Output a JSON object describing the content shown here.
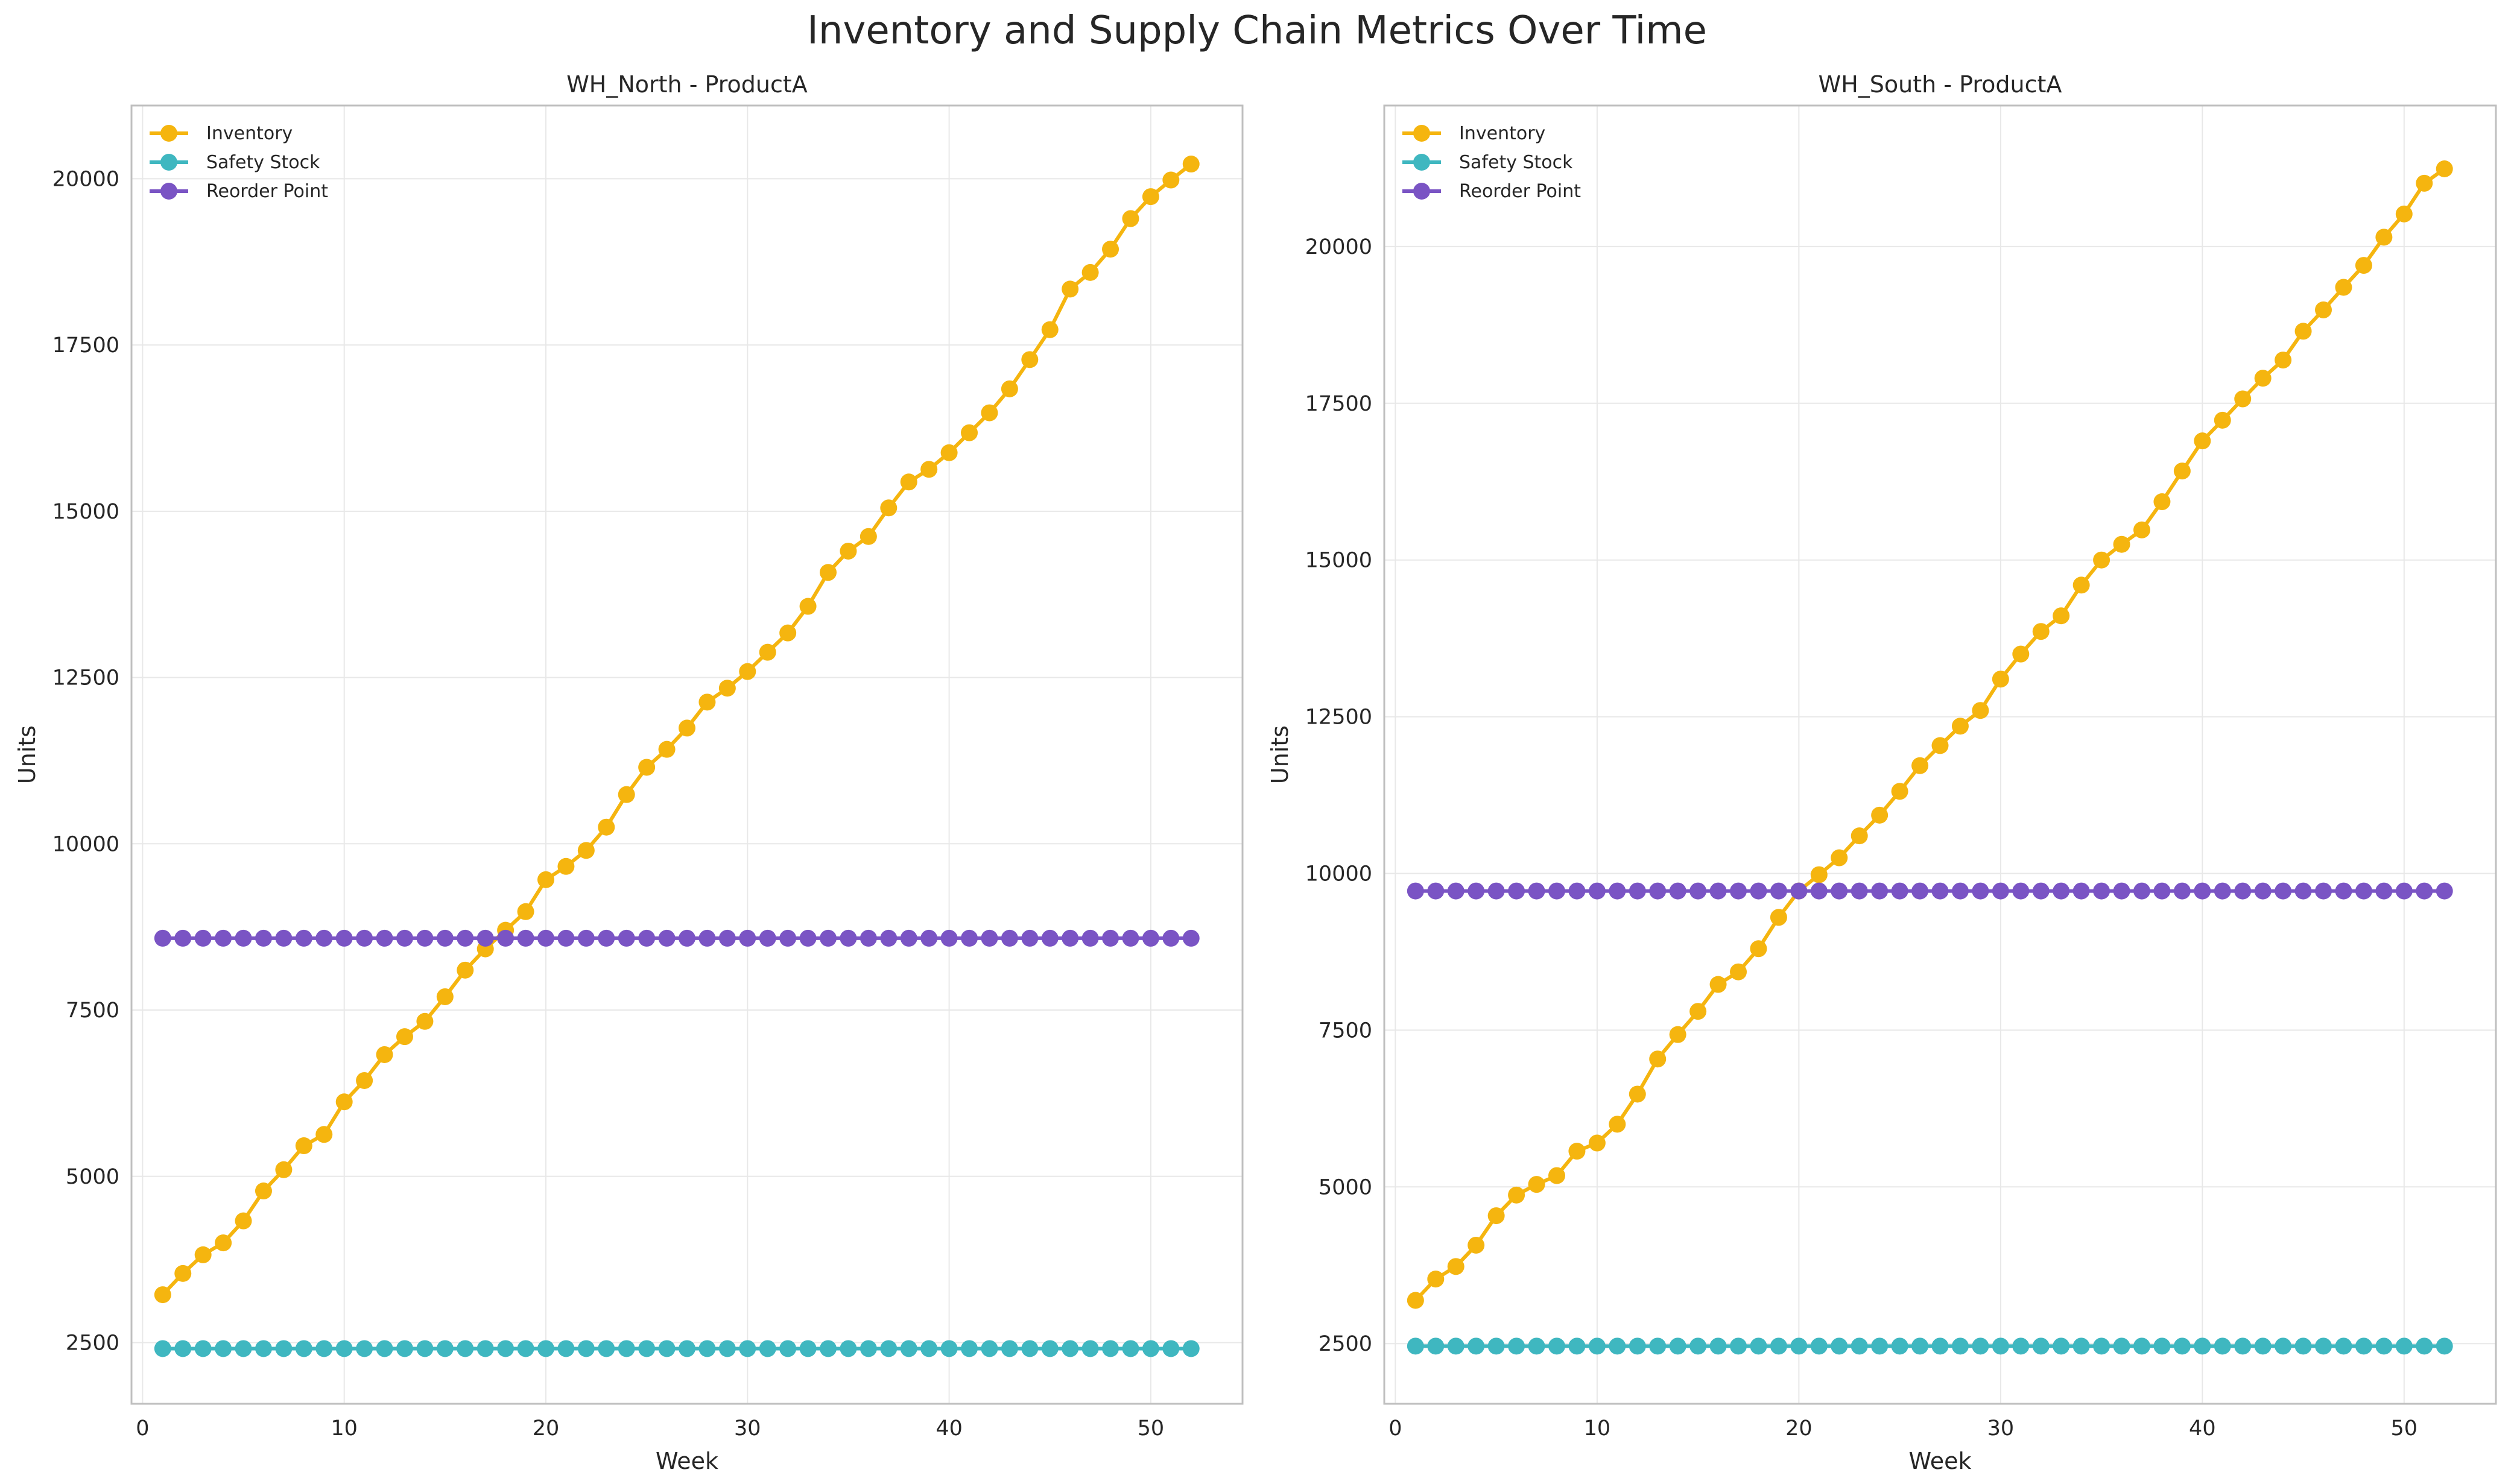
{
  "figure": {
    "title": "Inventory and Supply Chain Metrics Over Time"
  },
  "colors": {
    "inventory": "#f5b50f",
    "safety_stock": "#3fb7c0",
    "reorder_point": "#7a54c4",
    "grid": "#e8e8e8",
    "frame": "#bfbfbf"
  },
  "chart_data": [
    {
      "type": "line",
      "title": "WH_North - ProductA",
      "xlabel": "Week",
      "ylabel": "Units",
      "xlim": [
        -0.55,
        54.55
      ],
      "ylim": [
        1580,
        21100
      ],
      "xticks": [
        0,
        10,
        20,
        30,
        40,
        50
      ],
      "yticks": [
        2500,
        5000,
        7500,
        10000,
        12500,
        15000,
        17500,
        20000
      ],
      "grid": true,
      "legend": "top-left",
      "x": [
        1,
        2,
        3,
        4,
        5,
        6,
        7,
        8,
        9,
        10,
        11,
        12,
        13,
        14,
        15,
        16,
        17,
        18,
        19,
        20,
        21,
        22,
        23,
        24,
        25,
        26,
        27,
        28,
        29,
        30,
        31,
        32,
        33,
        34,
        35,
        36,
        37,
        38,
        39,
        40,
        41,
        42,
        43,
        44,
        45,
        46,
        47,
        48,
        49,
        50,
        51,
        52
      ],
      "series": [
        {
          "name": "Inventory",
          "color": "#f5b50f",
          "values": [
            3220,
            3540,
            3820,
            4000,
            4330,
            4780,
            5100,
            5460,
            5630,
            6120,
            6440,
            6830,
            7100,
            7330,
            7700,
            8100,
            8420,
            8700,
            8980,
            9460,
            9660,
            9900,
            10250,
            10740,
            11150,
            11420,
            11740,
            12130,
            12340,
            12590,
            12880,
            13170,
            13570,
            14080,
            14400,
            14620,
            15050,
            15440,
            15630,
            15880,
            16180,
            16480,
            16840,
            17280,
            17730,
            18340,
            18590,
            18940,
            19400,
            19730,
            19980,
            20220
          ]
        },
        {
          "name": "Safety Stock",
          "color": "#3fb7c0",
          "values": [
            2410,
            2410,
            2410,
            2410,
            2410,
            2410,
            2410,
            2410,
            2410,
            2410,
            2410,
            2410,
            2410,
            2410,
            2410,
            2410,
            2410,
            2410,
            2410,
            2410,
            2410,
            2410,
            2410,
            2410,
            2410,
            2410,
            2410,
            2410,
            2410,
            2410,
            2410,
            2410,
            2410,
            2410,
            2410,
            2410,
            2410,
            2410,
            2410,
            2410,
            2410,
            2410,
            2410,
            2410,
            2410,
            2410,
            2410,
            2410,
            2410,
            2410,
            2410,
            2410
          ]
        },
        {
          "name": "Reorder Point",
          "color": "#7a54c4",
          "values": [
            8580,
            8580,
            8580,
            8580,
            8580,
            8580,
            8580,
            8580,
            8580,
            8580,
            8580,
            8580,
            8580,
            8580,
            8580,
            8580,
            8580,
            8580,
            8580,
            8580,
            8580,
            8580,
            8580,
            8580,
            8580,
            8580,
            8580,
            8580,
            8580,
            8580,
            8580,
            8580,
            8580,
            8580,
            8580,
            8580,
            8580,
            8580,
            8580,
            8580,
            8580,
            8580,
            8580,
            8580,
            8580,
            8580,
            8580,
            8580,
            8580,
            8580,
            8580,
            8580
          ]
        }
      ]
    },
    {
      "type": "line",
      "title": "WH_South - ProductA",
      "xlabel": "Week",
      "ylabel": "Units",
      "xlim": [
        -0.55,
        54.55
      ],
      "ylim": [
        1540,
        22250
      ],
      "xticks": [
        0,
        10,
        20,
        30,
        40,
        50
      ],
      "yticks": [
        2500,
        5000,
        7500,
        10000,
        12500,
        15000,
        17500,
        20000
      ],
      "grid": true,
      "legend": "top-left",
      "x": [
        1,
        2,
        3,
        4,
        5,
        6,
        7,
        8,
        9,
        10,
        11,
        12,
        13,
        14,
        15,
        16,
        17,
        18,
        19,
        20,
        21,
        22,
        23,
        24,
        25,
        26,
        27,
        28,
        29,
        30,
        31,
        32,
        33,
        34,
        35,
        36,
        37,
        38,
        39,
        40,
        41,
        42,
        43,
        44,
        45,
        46,
        47,
        48,
        49,
        50,
        51,
        52
      ],
      "series": [
        {
          "name": "Inventory",
          "color": "#f5b50f",
          "values": [
            3190,
            3530,
            3730,
            4070,
            4540,
            4870,
            5040,
            5180,
            5570,
            5700,
            6000,
            6480,
            7040,
            7430,
            7800,
            8230,
            8430,
            8800,
            9300,
            9720,
            9980,
            10250,
            10600,
            10930,
            11310,
            11720,
            12040,
            12350,
            12600,
            13100,
            13500,
            13860,
            14110,
            14600,
            15000,
            15250,
            15480,
            15930,
            16420,
            16900,
            17230,
            17570,
            17900,
            18190,
            18650,
            18990,
            19350,
            19700,
            20150,
            20520,
            21010,
            21240
          ]
        },
        {
          "name": "Safety Stock",
          "color": "#3fb7c0",
          "values": [
            2460,
            2460,
            2460,
            2460,
            2460,
            2460,
            2460,
            2460,
            2460,
            2460,
            2460,
            2460,
            2460,
            2460,
            2460,
            2460,
            2460,
            2460,
            2460,
            2460,
            2460,
            2460,
            2460,
            2460,
            2460,
            2460,
            2460,
            2460,
            2460,
            2460,
            2460,
            2460,
            2460,
            2460,
            2460,
            2460,
            2460,
            2460,
            2460,
            2460,
            2460,
            2460,
            2460,
            2460,
            2460,
            2460,
            2460,
            2460,
            2460,
            2460,
            2460,
            2460
          ]
        },
        {
          "name": "Reorder Point",
          "color": "#7a54c4",
          "values": [
            9720,
            9720,
            9720,
            9720,
            9720,
            9720,
            9720,
            9720,
            9720,
            9720,
            9720,
            9720,
            9720,
            9720,
            9720,
            9720,
            9720,
            9720,
            9720,
            9720,
            9720,
            9720,
            9720,
            9720,
            9720,
            9720,
            9720,
            9720,
            9720,
            9720,
            9720,
            9720,
            9720,
            9720,
            9720,
            9720,
            9720,
            9720,
            9720,
            9720,
            9720,
            9720,
            9720,
            9720,
            9720,
            9720,
            9720,
            9720,
            9720,
            9720,
            9720,
            9720
          ]
        }
      ]
    }
  ]
}
